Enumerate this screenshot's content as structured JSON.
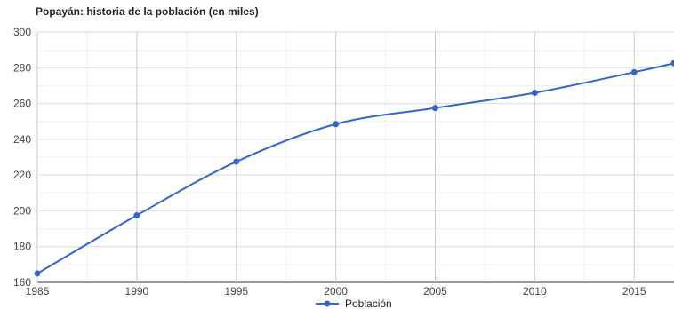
{
  "chart_data": {
    "type": "line",
    "title": "Popayán: historia de la población (en miles)",
    "xlabel": "",
    "ylabel": "",
    "x": [
      1985,
      1990,
      1995,
      2000,
      2005,
      2010,
      2015,
      2017
    ],
    "series": [
      {
        "name": "Población",
        "values": [
          165,
          197.5,
          227.5,
          248.5,
          257.5,
          266,
          277.5,
          282.5
        ],
        "color": "#3366cc"
      }
    ],
    "xlim": [
      1985,
      2017
    ],
    "ylim": [
      160,
      300
    ],
    "x_ticks": [
      1985,
      1990,
      1995,
      2000,
      2005,
      2010,
      2015
    ],
    "y_ticks": [
      160,
      180,
      200,
      220,
      240,
      260,
      280,
      300
    ],
    "grid": true,
    "legend_position": "bottom"
  }
}
